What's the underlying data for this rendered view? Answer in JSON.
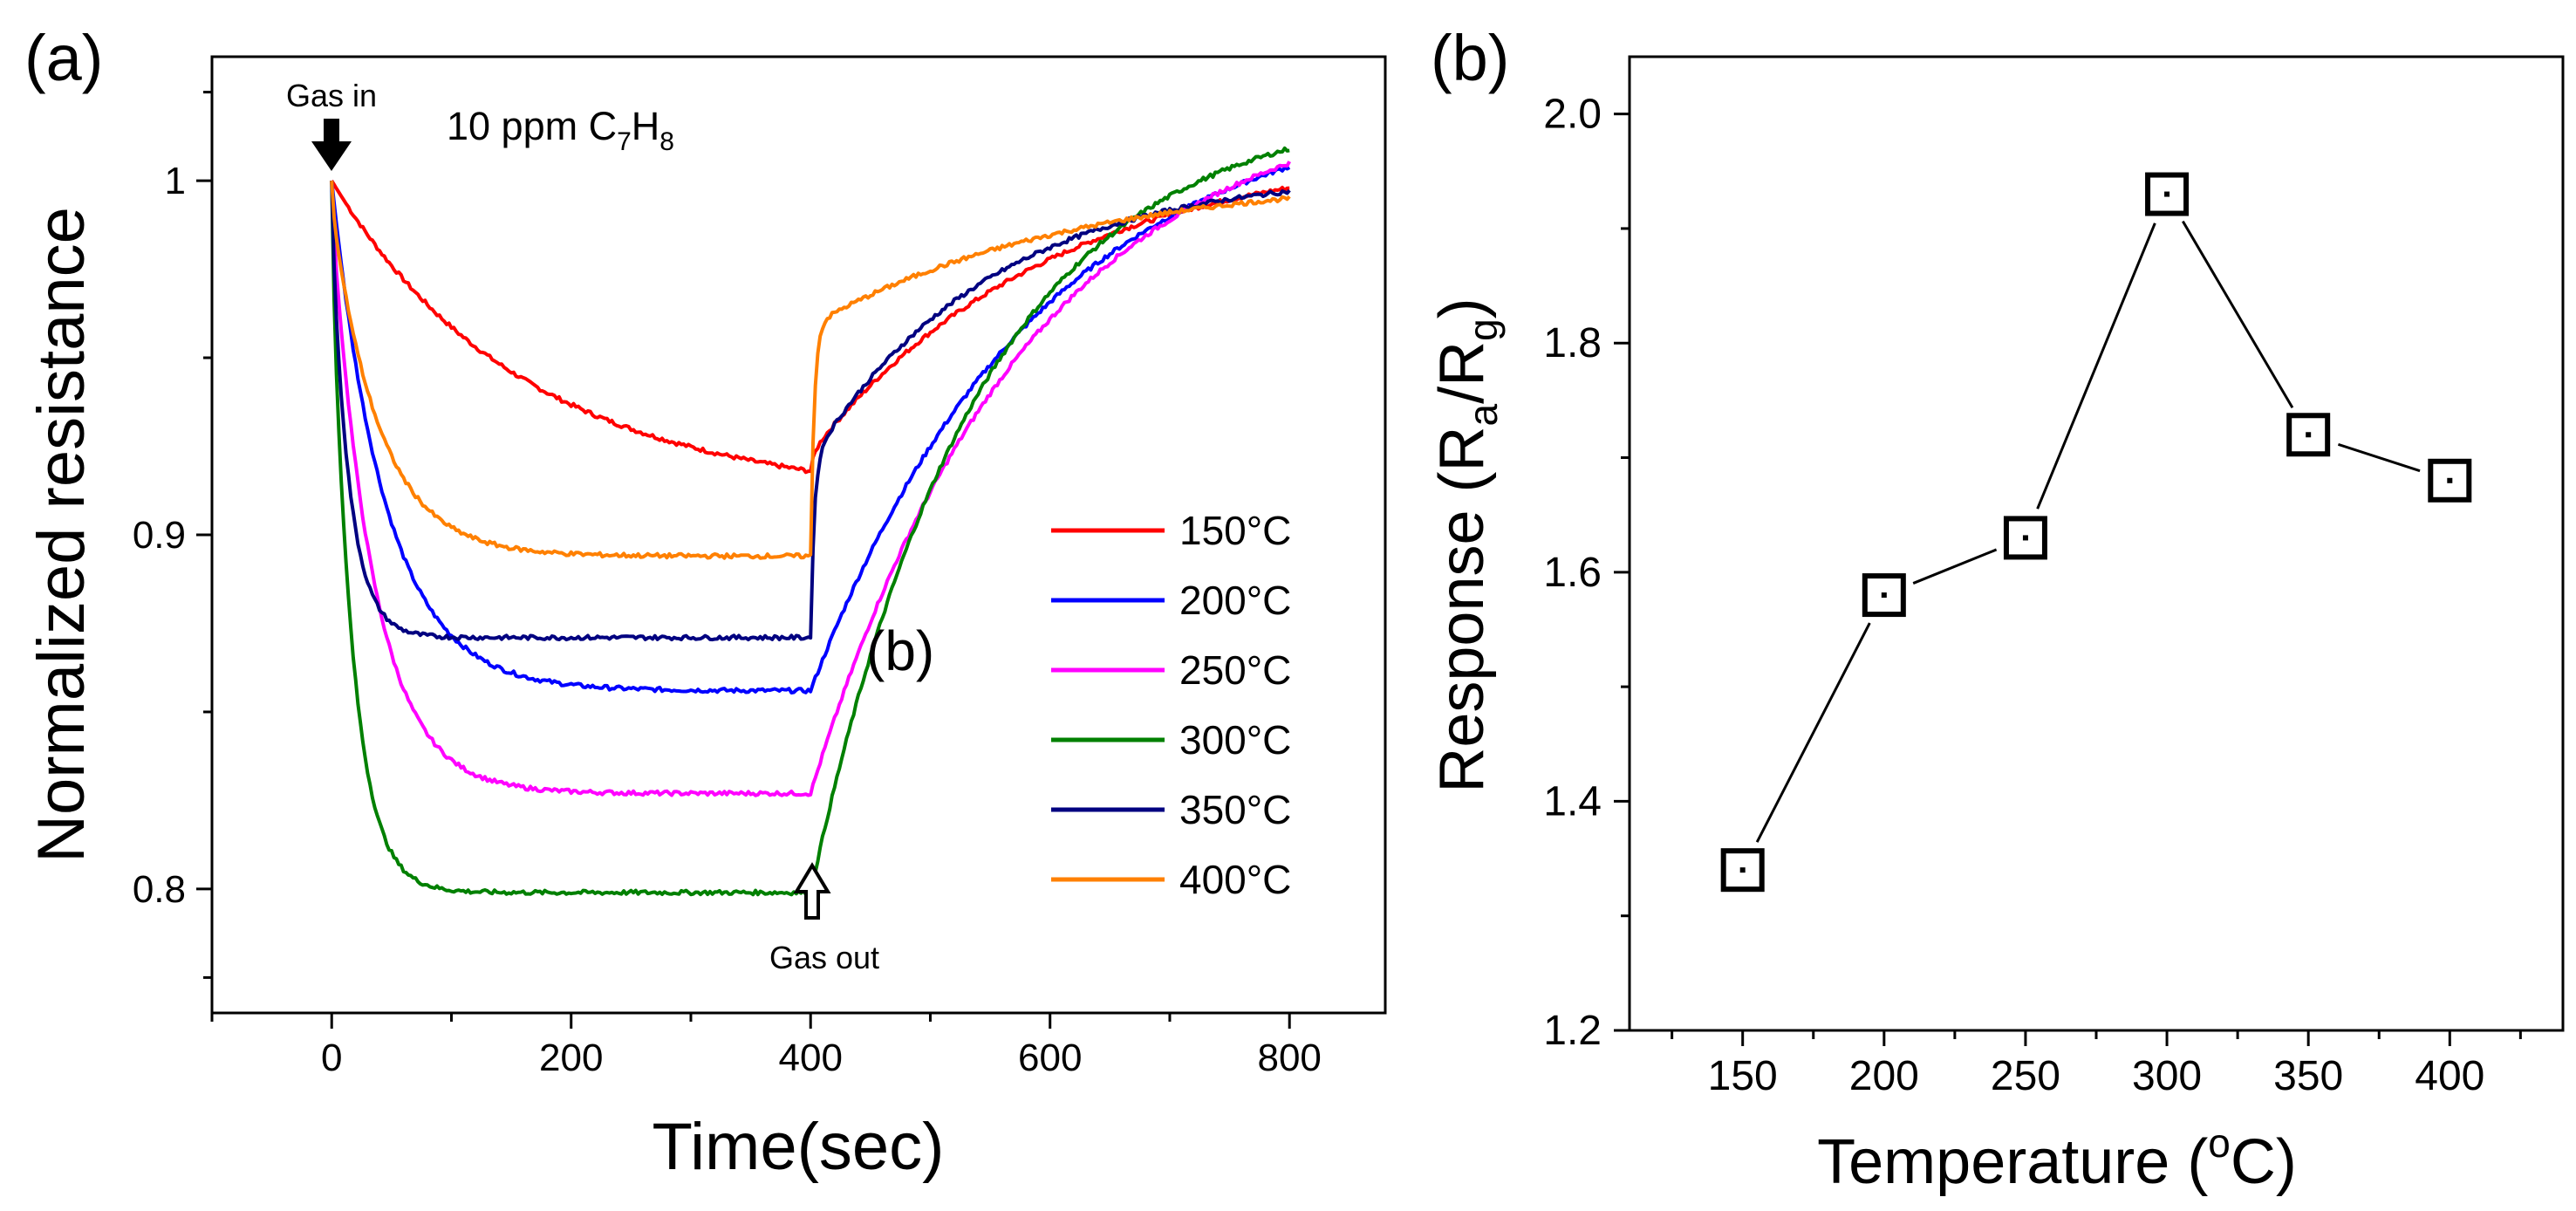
{
  "chart_data": [
    {
      "panel_label": "(a)",
      "type": "line",
      "title": "",
      "xlabel": "Time(sec)",
      "ylabel": "Normalized resistance",
      "xlim": [
        -100,
        880
      ],
      "ylim": [
        0.765,
        1.035
      ],
      "xticks": [
        0,
        200,
        400,
        600,
        800
      ],
      "yticks": [
        0.8,
        0.9,
        1
      ],
      "ytick_labels": [
        "0.8",
        "0.9",
        "1"
      ],
      "annotations": {
        "gas_in": "Gas in",
        "gas_out": "Gas out",
        "concentration": {
          "prefix": "10 ppm C",
          "sub1": "7",
          "mid": "H",
          "sub2": "8"
        },
        "inset_marker": "(b)"
      },
      "legend_position": "lower-right",
      "series": [
        {
          "name": "150°C",
          "label_num": "150",
          "label_unit": "°C",
          "color": "#ff0000",
          "y_gas_in": 1.0,
          "y_gas_off": 0.918,
          "tau_in": 150,
          "tau_out": 200,
          "fast_drop": 0,
          "fast_rise": 0.005,
          "y_end": 0.998
        },
        {
          "name": "200°C",
          "label_num": "200",
          "label_unit": "°C",
          "color": "#0000ff",
          "y_gas_in": 1.0,
          "y_gas_off": 0.856,
          "tau_in": 45,
          "tau_out": 190,
          "fast_drop": 0,
          "fast_rise": 0,
          "y_end": 1.004
        },
        {
          "name": "250°C",
          "label_num": "250",
          "label_unit": "°C",
          "color": "#ff00ff",
          "y_gas_in": 1.0,
          "y_gas_off": 0.827,
          "tau_in": 35,
          "tau_out": 180,
          "fast_drop": 0.05,
          "fast_rise": 0,
          "y_end": 1.005
        },
        {
          "name": "300°C",
          "label_num": "300",
          "label_unit": "°C",
          "color": "#008000",
          "y_gas_in": 1.0,
          "y_gas_off": 0.799,
          "tau_in": 18,
          "tau_out": 140,
          "fast_drop": 0.1,
          "fast_rise": 0,
          "y_end": 1.009
        },
        {
          "name": "350°C",
          "label_num": "350",
          "label_unit": "°C",
          "color": "#000080",
          "y_gas_in": 1.0,
          "y_gas_off": 0.871,
          "tau_in": 15,
          "tau_out": 150,
          "fast_drop": 0.1,
          "fast_rise": 0.05,
          "y_end": 0.997
        },
        {
          "name": "400°C",
          "label_num": "400",
          "label_unit": "°C",
          "color": "#ff8000",
          "y_gas_in": 1.0,
          "y_gas_off": 0.894,
          "tau_in": 40,
          "tau_out": 220,
          "fast_drop": 0.07,
          "fast_rise": 0.065,
          "y_end": 0.995
        }
      ]
    },
    {
      "panel_label": "(b)",
      "type": "scatter",
      "title": "",
      "xlabel": "Temperature (°C)",
      "xlabel_parts": {
        "pre": "Temperature (",
        "sup": "o",
        "post": "C)"
      },
      "ylabel": "Response (Ra/Rg)",
      "ylabel_parts": {
        "pre": "Response (R",
        "sub1": "a",
        "mid": "/R",
        "sub2": "g",
        "post": ")"
      },
      "xlim": [
        110,
        440
      ],
      "ylim": [
        1.2,
        2.05
      ],
      "xticks": [
        150,
        200,
        250,
        300,
        350,
        400
      ],
      "yticks": [
        1.2,
        1.4,
        1.6,
        1.8,
        2.0
      ],
      "ytick_labels": [
        "1.2",
        "1.4",
        "1.6",
        "1.8",
        "2.0"
      ],
      "x": [
        150,
        200,
        250,
        300,
        350,
        400
      ],
      "y": [
        1.34,
        1.58,
        1.63,
        1.93,
        1.72,
        1.68
      ],
      "marker": "square-dot",
      "grid": false
    }
  ]
}
